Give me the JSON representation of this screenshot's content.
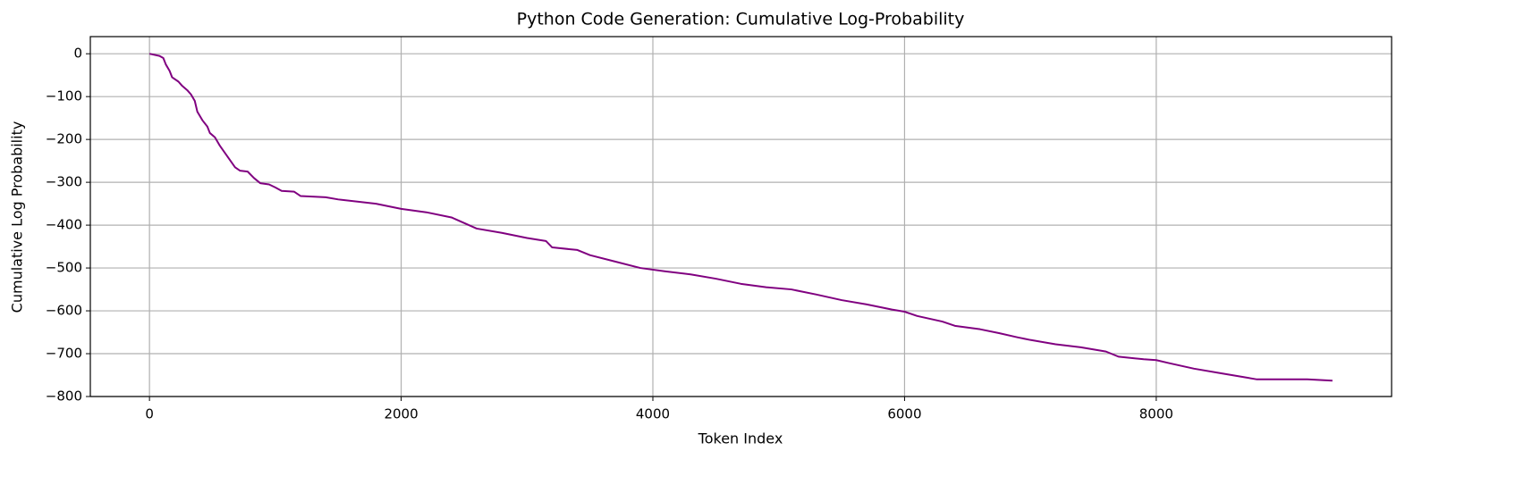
{
  "chart_data": {
    "type": "line",
    "title": "Python Code Generation: Cumulative Log-Probability",
    "x_label": "Token Index",
    "y_label": "Cumulative Log Probability",
    "grid": true,
    "xlim": [
      -470,
      9870
    ],
    "ylim": [
      -800,
      40
    ],
    "xticks": [
      0,
      2000,
      4000,
      6000,
      8000
    ],
    "yticks": [
      {
        "value": -800,
        "label": "−800"
      },
      {
        "value": -700,
        "label": "−700"
      },
      {
        "value": -600,
        "label": "−600"
      },
      {
        "value": -500,
        "label": "−500"
      },
      {
        "value": -400,
        "label": "−400"
      },
      {
        "value": -300,
        "label": "−300"
      },
      {
        "value": -200,
        "label": "−200"
      },
      {
        "value": -100,
        "label": "−100"
      },
      0
    ],
    "x": [
      0,
      80,
      110,
      130,
      160,
      180,
      230,
      260,
      300,
      330,
      360,
      380,
      420,
      460,
      480,
      520,
      560,
      620,
      680,
      720,
      780,
      830,
      880,
      950,
      1000,
      1050,
      1150,
      1200,
      1400,
      1500,
      1800,
      2000,
      2200,
      2400,
      2500,
      2600,
      2800,
      3000,
      3150,
      3200,
      3400,
      3500,
      3700,
      3900,
      4100,
      4300,
      4500,
      4700,
      4900,
      5100,
      5300,
      5500,
      5700,
      5900,
      6000,
      6100,
      6300,
      6400,
      6600,
      6750,
      6900,
      7000,
      7200,
      7400,
      7600,
      7700,
      7900,
      8000,
      8100,
      8300,
      8500,
      8700,
      8800,
      9200,
      9400
    ],
    "series": [
      {
        "color": "#800080",
        "values": [
          0,
          -5,
          -10,
          -25,
          -40,
          -55,
          -65,
          -75,
          -85,
          -95,
          -110,
          -135,
          -155,
          -170,
          -185,
          -195,
          -215,
          -240,
          -265,
          -273,
          -275,
          -290,
          -302,
          -305,
          -312,
          -320,
          -322,
          -332,
          -335,
          -340,
          -350,
          -362,
          -370,
          -382,
          -395,
          -408,
          -418,
          -430,
          -437,
          -452,
          -458,
          -470,
          -485,
          -500,
          -508,
          -515,
          -525,
          -537,
          -545,
          -550,
          -562,
          -575,
          -585,
          -597,
          -602,
          -612,
          -625,
          -635,
          -643,
          -652,
          -662,
          -668,
          -678,
          -685,
          -695,
          -707,
          -713,
          -715,
          -722,
          -735,
          -745,
          -755,
          -760,
          -760,
          -763
        ]
      }
    ]
  }
}
